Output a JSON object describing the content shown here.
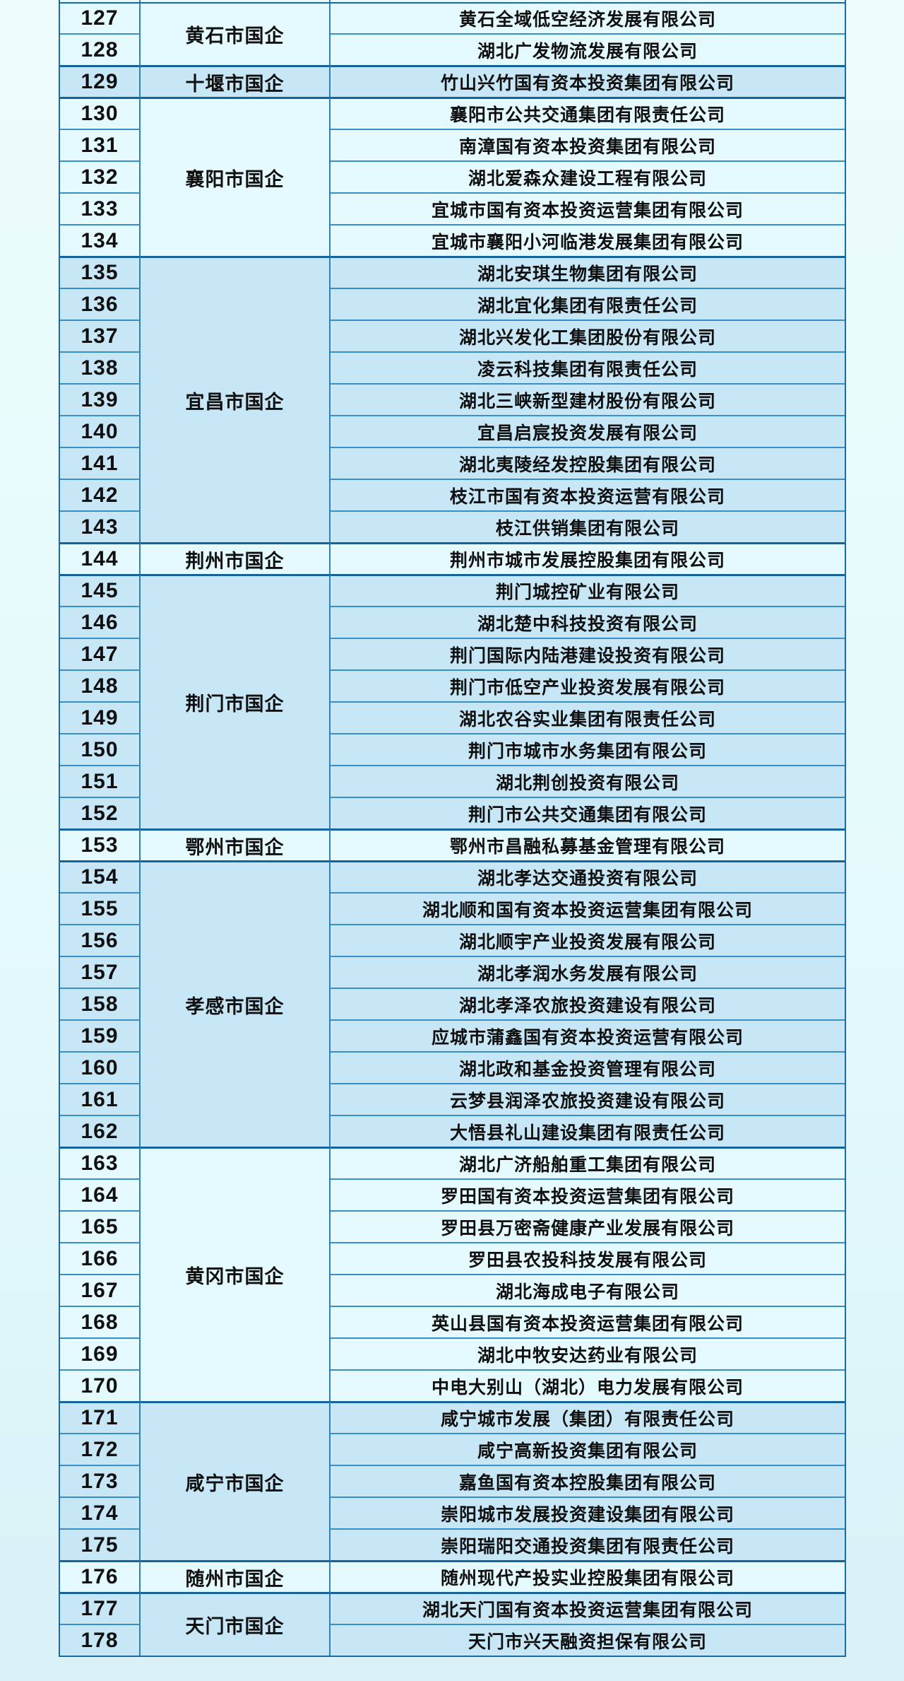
{
  "page": {
    "background_top": "#eefdfc",
    "background_bottom": "#d9f2f8"
  },
  "colors": {
    "pale_row_bg": "#e5fafe",
    "blue_row_bg": "#c8e7f6",
    "thin_row_line": "#3a8fc5",
    "group_boundary_line": "#15639b",
    "column_divider": "#2f81b7",
    "outer_border": "#1a6aa5",
    "text": "#101010"
  },
  "table": {
    "groups": [
      {
        "category": "黄石市国企",
        "tone": "pale",
        "rows": [
          {
            "no": "127",
            "company": "黄石全域低空经济发展有限公司"
          },
          {
            "no": "128",
            "company": "湖北广发物流发展有限公司"
          }
        ]
      },
      {
        "category": "十堰市国企",
        "tone": "blue",
        "rows": [
          {
            "no": "129",
            "company": "竹山兴竹国有资本投资集团有限公司"
          }
        ]
      },
      {
        "category": "襄阳市国企",
        "tone": "pale",
        "rows": [
          {
            "no": "130",
            "company": "襄阳市公共交通集团有限责任公司"
          },
          {
            "no": "131",
            "company": "南漳国有资本投资集团有限公司"
          },
          {
            "no": "132",
            "company": "湖北爱森众建设工程有限公司"
          },
          {
            "no": "133",
            "company": "宜城市国有资本投资运营集团有限公司"
          },
          {
            "no": "134",
            "company": "宜城市襄阳小河临港发展集团有限公司"
          }
        ]
      },
      {
        "category": "宜昌市国企",
        "tone": "blue",
        "rows": [
          {
            "no": "135",
            "company": "湖北安琪生物集团有限公司"
          },
          {
            "no": "136",
            "company": "湖北宜化集团有限责任公司"
          },
          {
            "no": "137",
            "company": "湖北兴发化工集团股份有限公司"
          },
          {
            "no": "138",
            "company": "凌云科技集团有限责任公司"
          },
          {
            "no": "139",
            "company": "湖北三峡新型建材股份有限公司"
          },
          {
            "no": "140",
            "company": "宜昌启宸投资发展有限公司"
          },
          {
            "no": "141",
            "company": "湖北夷陵经发控股集团有限公司"
          },
          {
            "no": "142",
            "company": "枝江市国有资本投资运营有限公司"
          },
          {
            "no": "143",
            "company": "枝江供销集团有限公司"
          }
        ]
      },
      {
        "category": "荆州市国企",
        "tone": "pale",
        "rows": [
          {
            "no": "144",
            "company": "荆州市城市发展控股集团有限公司"
          }
        ]
      },
      {
        "category": "荆门市国企",
        "tone": "blue",
        "rows": [
          {
            "no": "145",
            "company": "荆门城控矿业有限公司"
          },
          {
            "no": "146",
            "company": "湖北楚中科技投资有限公司"
          },
          {
            "no": "147",
            "company": "荆门国际内陆港建设投资有限公司"
          },
          {
            "no": "148",
            "company": "荆门市低空产业投资发展有限公司"
          },
          {
            "no": "149",
            "company": "湖北农谷实业集团有限责任公司"
          },
          {
            "no": "150",
            "company": "荆门市城市水务集团有限公司"
          },
          {
            "no": "151",
            "company": "湖北荆创投资有限公司"
          },
          {
            "no": "152",
            "company": "荆门市公共交通集团有限公司"
          }
        ]
      },
      {
        "category": "鄂州市国企",
        "tone": "pale",
        "rows": [
          {
            "no": "153",
            "company": "鄂州市昌融私募基金管理有限公司"
          }
        ]
      },
      {
        "category": "孝感市国企",
        "tone": "blue",
        "rows": [
          {
            "no": "154",
            "company": "湖北孝达交通投资有限公司"
          },
          {
            "no": "155",
            "company": "湖北顺和国有资本投资运营集团有限公司"
          },
          {
            "no": "156",
            "company": "湖北顺宇产业投资发展有限公司"
          },
          {
            "no": "157",
            "company": "湖北孝润水务发展有限公司"
          },
          {
            "no": "158",
            "company": "湖北孝泽农旅投资建设有限公司"
          },
          {
            "no": "159",
            "company": "应城市蒲鑫国有资本投资运营有限公司"
          },
          {
            "no": "160",
            "company": "湖北政和基金投资管理有限公司"
          },
          {
            "no": "161",
            "company": "云梦县润泽农旅投资建设有限公司"
          },
          {
            "no": "162",
            "company": "大悟县礼山建设集团有限责任公司"
          }
        ]
      },
      {
        "category": "黄冈市国企",
        "tone": "pale",
        "rows": [
          {
            "no": "163",
            "company": "湖北广济船舶重工集团有限公司"
          },
          {
            "no": "164",
            "company": "罗田国有资本投资运营集团有限公司"
          },
          {
            "no": "165",
            "company": "罗田县万密斋健康产业发展有限公司"
          },
          {
            "no": "166",
            "company": "罗田县农投科技发展有限公司"
          },
          {
            "no": "167",
            "company": "湖北海成电子有限公司"
          },
          {
            "no": "168",
            "company": "英山县国有资本投资运营集团有限公司"
          },
          {
            "no": "169",
            "company": "湖北中牧安达药业有限公司"
          },
          {
            "no": "170",
            "company": "中电大别山（湖北）电力发展有限公司"
          }
        ]
      },
      {
        "category": "咸宁市国企",
        "tone": "blue",
        "rows": [
          {
            "no": "171",
            "company": "咸宁城市发展（集团）有限责任公司"
          },
          {
            "no": "172",
            "company": "咸宁高新投资集团有限公司"
          },
          {
            "no": "173",
            "company": "嘉鱼国有资本控股集团有限公司"
          },
          {
            "no": "174",
            "company": "崇阳城市发展投资建设集团有限公司"
          },
          {
            "no": "175",
            "company": "崇阳瑞阳交通投资集团有限责任公司"
          }
        ]
      },
      {
        "category": "随州市国企",
        "tone": "pale",
        "rows": [
          {
            "no": "176",
            "company": "随州现代产投实业控股集团有限公司"
          }
        ]
      },
      {
        "category": "天门市国企",
        "tone": "blue",
        "rows": [
          {
            "no": "177",
            "company": "湖北天门国有资本投资运营集团有限公司"
          },
          {
            "no": "178",
            "company": "天门市兴天融资担保有限公司"
          }
        ]
      }
    ]
  }
}
